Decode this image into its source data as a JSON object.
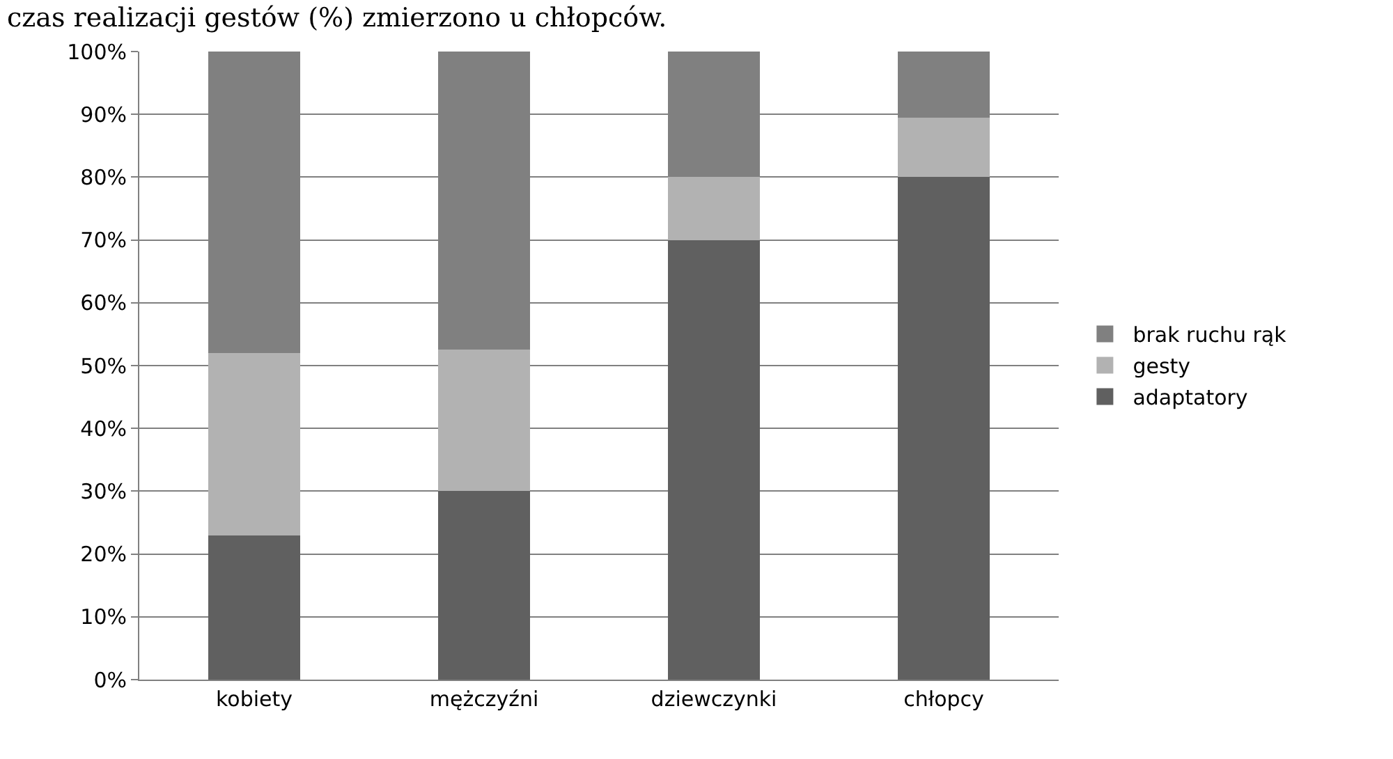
{
  "chart_data": {
    "type": "bar",
    "title": "czas realizacji gestów (%) zmierzono u chłopców.",
    "stacked": true,
    "categories": [
      "kobiety",
      "mężczyźni",
      "dziewczynki",
      "chłopcy"
    ],
    "series": [
      {
        "name": "adaptatory",
        "color": "#606060",
        "values": [
          23,
          30,
          70,
          80
        ]
      },
      {
        "name": "gesty",
        "color": "#b2b2b2",
        "values": [
          29,
          22.5,
          10,
          9.5
        ]
      },
      {
        "name": "brak ruchu rąk",
        "color": "#808080",
        "values": [
          48,
          47.5,
          20,
          10.5
        ]
      }
    ],
    "ylim": [
      0,
      100
    ],
    "yticks": [
      {
        "value": 0,
        "label": "0%"
      },
      {
        "value": 10,
        "label": "10%"
      },
      {
        "value": 20,
        "label": "20%"
      },
      {
        "value": 30,
        "label": "30%"
      },
      {
        "value": 40,
        "label": "40%"
      },
      {
        "value": 50,
        "label": "50%"
      },
      {
        "value": 60,
        "label": "60%"
      },
      {
        "value": 70,
        "label": "70%"
      },
      {
        "value": 80,
        "label": "80%"
      },
      {
        "value": 90,
        "label": "90%"
      },
      {
        "value": 100,
        "label": "100%"
      }
    ],
    "grid": "y",
    "legend": "right"
  }
}
